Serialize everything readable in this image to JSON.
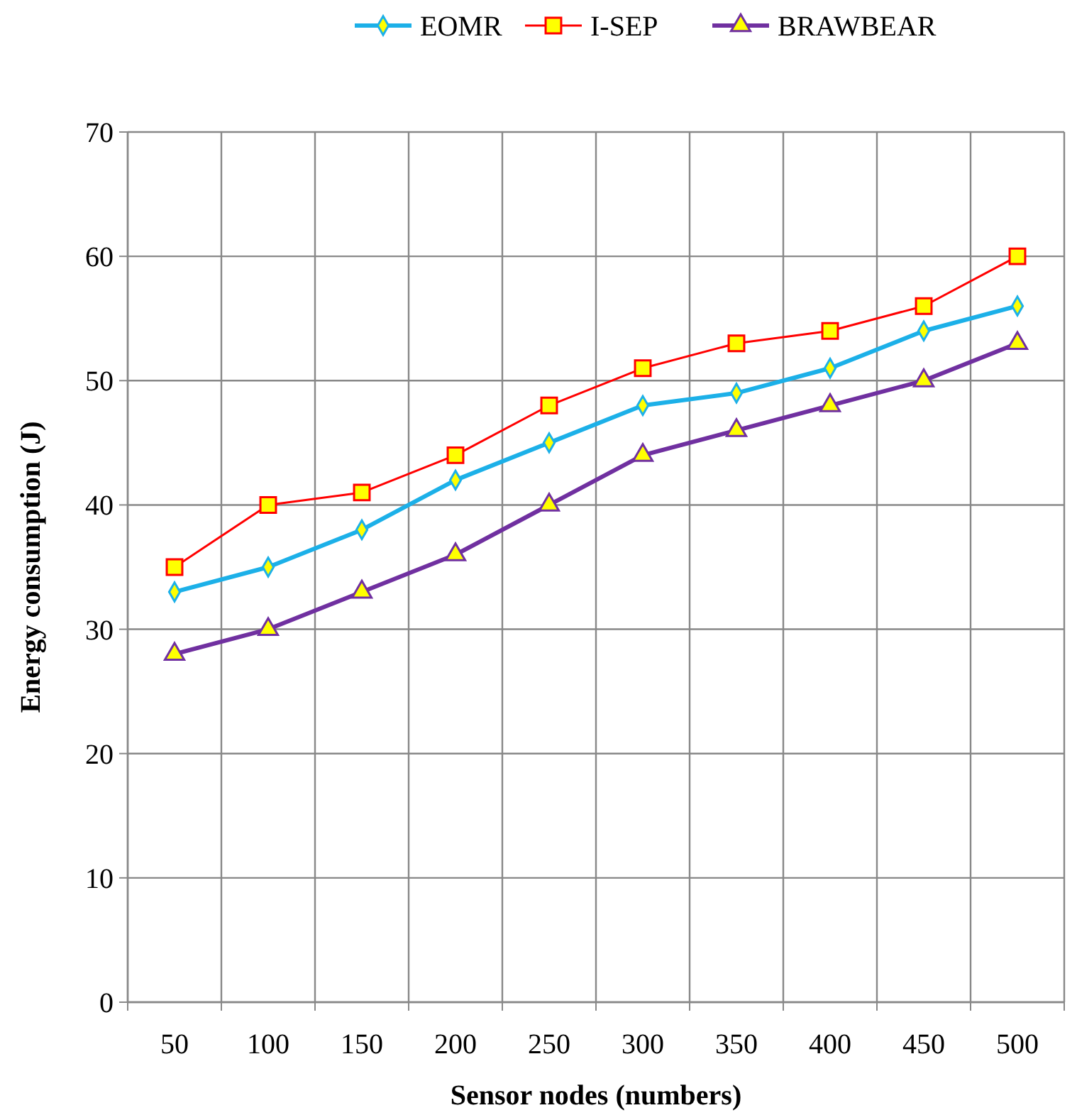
{
  "chart_data": {
    "type": "line",
    "xlabel": "Sensor nodes (numbers)",
    "ylabel": "Energy consumption (J)",
    "categories": [
      "50",
      "100",
      "150",
      "200",
      "250",
      "300",
      "350",
      "400",
      "450",
      "500"
    ],
    "series": [
      {
        "name": "EOMR",
        "color": "#1cb0e8",
        "marker": "diamond",
        "values": [
          33,
          35,
          38,
          42,
          45,
          48,
          49,
          51,
          54,
          56
        ]
      },
      {
        "name": "I-SEP",
        "color": "#ff0000",
        "marker": "square",
        "values": [
          35,
          40,
          41,
          44,
          48,
          51,
          53,
          54,
          56,
          60
        ]
      },
      {
        "name": "BRAWBEAR",
        "color": "#7030a0",
        "marker": "triangle",
        "values": [
          28,
          30,
          33,
          36,
          40,
          44,
          46,
          48,
          50,
          53
        ]
      }
    ],
    "ylim": [
      0,
      70
    ],
    "yticks": [
      0,
      10,
      20,
      30,
      40,
      50,
      60,
      70
    ],
    "grid": true,
    "legend": "top"
  }
}
